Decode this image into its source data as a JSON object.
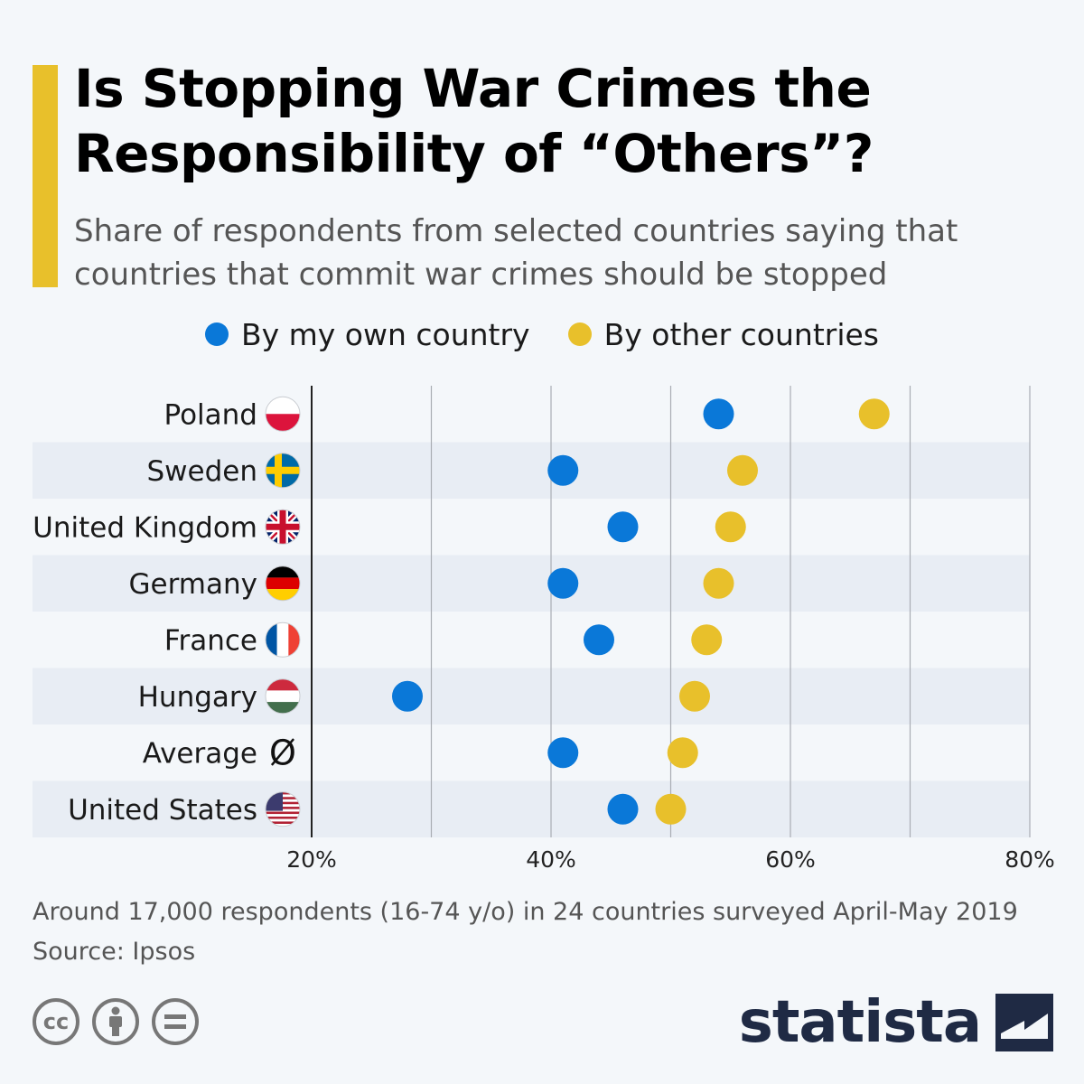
{
  "title": "Is Stopping War Crimes the Responsibility of “Others”?",
  "subtitle": "Share of respondents from selected countries saying that countries that commit war crimes should be stopped",
  "legend": [
    {
      "label": "By my own country",
      "color": "#0a78d8"
    },
    {
      "label": "By other countries",
      "color": "#e8c02b"
    }
  ],
  "chart_data": {
    "type": "scatter",
    "categories": [
      "Poland",
      "Sweden",
      "United Kingdom",
      "Germany",
      "France",
      "Hungary",
      "Average",
      "United States"
    ],
    "series": [
      {
        "name": "By my own country",
        "color": "#0a78d8",
        "values": [
          54,
          41,
          46,
          41,
          44,
          28,
          41,
          46
        ]
      },
      {
        "name": "By other countries",
        "color": "#e8c02b",
        "values": [
          67,
          56,
          55,
          54,
          53,
          52,
          51,
          50
        ]
      }
    ],
    "xlim": [
      20,
      80
    ],
    "xticks": [
      20,
      30,
      40,
      50,
      60,
      70,
      80
    ],
    "xtick_labels": [
      "20%",
      "",
      "40%",
      "",
      "60%",
      "",
      "80%"
    ],
    "flags": [
      "poland",
      "sweden",
      "uk",
      "germany",
      "france",
      "hungary",
      "average",
      "usa"
    ],
    "average_symbol": "Ø"
  },
  "footnote": {
    "line1": "Around 17,000 respondents (16-74 y/o) in 24 countries surveyed April-May 2019",
    "line2": "Source: Ipsos"
  },
  "license_icons": [
    "cc",
    "attribution",
    "no-derivatives"
  ],
  "brand": {
    "name": "statista",
    "color": "#1f2a44"
  }
}
